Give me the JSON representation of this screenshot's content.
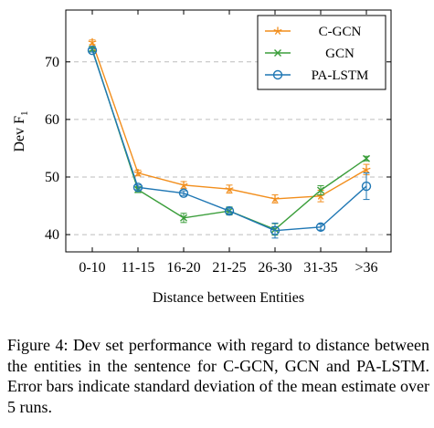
{
  "chart_data": {
    "type": "line",
    "categories": [
      "0-10",
      "11-15",
      "16-20",
      "21-25",
      "26-30",
      "31-35",
      ">36"
    ],
    "xlabel": "Distance between Entities",
    "ylabel": "Dev F",
    "ylabel_sub": "1",
    "ylim": [
      37,
      79
    ],
    "yticks": [
      40,
      50,
      60,
      70
    ],
    "grid": "horizontal dashed",
    "legend_position": "top-right",
    "series": [
      {
        "name": "C-GCN",
        "color": "#f28e1c",
        "marker": "star",
        "values": [
          73.4,
          50.7,
          48.6,
          47.9,
          46.2,
          46.7,
          51.3
        ],
        "errors": [
          0.4,
          0.5,
          0.6,
          0.7,
          0.7,
          1.0,
          0.9
        ]
      },
      {
        "name": "GCN",
        "color": "#3b9e3b",
        "marker": "x",
        "values": [
          72.2,
          47.8,
          42.9,
          44.1,
          40.9,
          47.7,
          53.2
        ],
        "errors": [
          0.3,
          0.5,
          0.8,
          0.7,
          1.0,
          0.8,
          0.4
        ]
      },
      {
        "name": "PA-LSTM",
        "color": "#1f77b4",
        "marker": "circle",
        "values": [
          72.0,
          48.2,
          47.2,
          44.1,
          40.7,
          41.3,
          48.4
        ],
        "errors": [
          0.3,
          0.4,
          0.4,
          0.5,
          1.3,
          0.5,
          2.3
        ]
      }
    ]
  },
  "caption": {
    "label": "Figure 4:",
    "text": "Dev set performance with regard to distance between the entities in the sentence for C-GCN, GCN and PA-LSTM. Error bars indicate standard deviation of the mean estimate over 5 runs."
  }
}
